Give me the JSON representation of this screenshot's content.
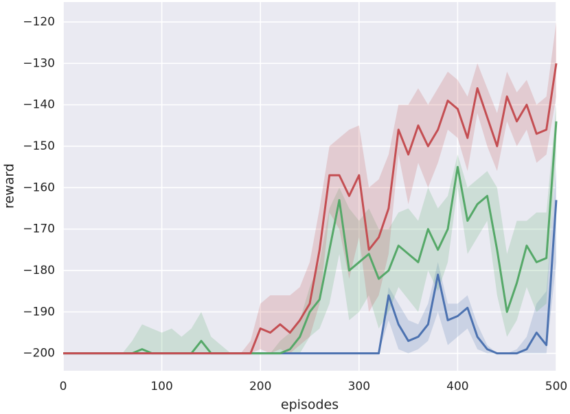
{
  "chart_data": {
    "type": "line",
    "xlabel": "episodes",
    "ylabel": "reward",
    "x": [
      0,
      10,
      20,
      30,
      40,
      50,
      60,
      70,
      80,
      90,
      100,
      110,
      120,
      130,
      140,
      150,
      160,
      170,
      180,
      190,
      200,
      210,
      220,
      230,
      240,
      250,
      260,
      270,
      280,
      290,
      300,
      310,
      320,
      330,
      340,
      350,
      360,
      370,
      380,
      390,
      400,
      410,
      420,
      430,
      440,
      450,
      460,
      470,
      480,
      490,
      500
    ],
    "xlim": [
      0,
      500
    ],
    "xticks": [
      0,
      100,
      200,
      300,
      400,
      500
    ],
    "ylim": [
      -204.2,
      -115.2
    ],
    "yticks": [
      {
        "value": -200,
        "label": "−200"
      },
      {
        "value": -190,
        "label": "−190"
      },
      {
        "value": -180,
        "label": "−180"
      },
      {
        "value": -170,
        "label": "−170"
      },
      {
        "value": -160,
        "label": "−160"
      },
      {
        "value": -150,
        "label": "−150"
      },
      {
        "value": -140,
        "label": "−140"
      },
      {
        "value": -130,
        "label": "−130"
      },
      {
        "value": -120,
        "label": "−120"
      }
    ],
    "grid": true,
    "series": [
      {
        "color": "#4c72b0",
        "values": [
          -200,
          -200,
          -200,
          -200,
          -200,
          -200,
          -200,
          -200,
          -200,
          -200,
          -200,
          -200,
          -200,
          -200,
          -200,
          -200,
          -200,
          -200,
          -200,
          -200,
          -200,
          -200,
          -200,
          -200,
          -200,
          -200,
          -200,
          -200,
          -200,
          -200,
          -200,
          -200,
          -200,
          -186,
          -193,
          -197,
          -196,
          -193,
          -181,
          -192,
          -191,
          -189,
          -196,
          -199,
          -200,
          -200,
          -200,
          -199,
          -195,
          -198,
          -163
        ],
        "upper": [
          -200,
          -200,
          -200,
          -200,
          -200,
          -200,
          -200,
          -200,
          -200,
          -200,
          -200,
          -200,
          -200,
          -200,
          -200,
          -200,
          -200,
          -200,
          -200,
          -200,
          -200,
          -200,
          -200,
          -200,
          -200,
          -200,
          -200,
          -200,
          -200,
          -200,
          -200,
          -200,
          -200,
          -184,
          -188,
          -192,
          -193,
          -188,
          -178,
          -188,
          -188,
          -186,
          -193,
          -198,
          -200,
          -200,
          -199,
          -196,
          -188,
          -185,
          -155
        ],
        "lower": [
          -200,
          -200,
          -200,
          -200,
          -200,
          -200,
          -200,
          -200,
          -200,
          -200,
          -200,
          -200,
          -200,
          -200,
          -200,
          -200,
          -200,
          -200,
          -200,
          -200,
          -200,
          -200,
          -200,
          -200,
          -200,
          -200,
          -200,
          -200,
          -200,
          -200,
          -200,
          -200,
          -200,
          -192,
          -199,
          -200,
          -199,
          -197,
          -190,
          -198,
          -196,
          -194,
          -199,
          -200,
          -200,
          -200,
          -200,
          -200,
          -200,
          -200,
          -178
        ]
      },
      {
        "color": "#55a868",
        "values": [
          -200,
          -200,
          -200,
          -200,
          -200,
          -200,
          -200,
          -200,
          -199,
          -200,
          -200,
          -200,
          -200,
          -200,
          -197,
          -200,
          -200,
          -200,
          -200,
          -200,
          -200,
          -200,
          -200,
          -199,
          -196,
          -190,
          -187,
          -175,
          -163,
          -180,
          -178,
          -176,
          -182,
          -180,
          -174,
          -176,
          -178,
          -170,
          -175,
          -170,
          -155,
          -168,
          -164,
          -162,
          -175,
          -190,
          -183,
          -174,
          -178,
          -177,
          -144
        ],
        "upper": [
          -200,
          -200,
          -200,
          -200,
          -200,
          -200,
          -200,
          -197,
          -193,
          -194,
          -195,
          -194,
          -196,
          -194,
          -190,
          -196,
          -198,
          -200,
          -200,
          -200,
          -200,
          -200,
          -197,
          -195,
          -192,
          -184,
          -178,
          -165,
          -160,
          -165,
          -168,
          -165,
          -170,
          -170,
          -166,
          -165,
          -168,
          -160,
          -165,
          -162,
          -152,
          -160,
          -158,
          -156,
          -160,
          -176,
          -168,
          -168,
          -166,
          -166,
          -140
        ],
        "lower": [
          -200,
          -200,
          -200,
          -200,
          -200,
          -200,
          -200,
          -200,
          -200,
          -200,
          -200,
          -200,
          -200,
          -200,
          -200,
          -200,
          -200,
          -200,
          -200,
          -200,
          -200,
          -200,
          -200,
          -200,
          -200,
          -196,
          -194,
          -188,
          -176,
          -192,
          -190,
          -186,
          -194,
          -190,
          -184,
          -187,
          -190,
          -180,
          -185,
          -178,
          -160,
          -176,
          -172,
          -168,
          -186,
          -196,
          -192,
          -184,
          -190,
          -188,
          -152
        ]
      },
      {
        "color": "#c44e52",
        "values": [
          -200,
          -200,
          -200,
          -200,
          -200,
          -200,
          -200,
          -200,
          -200,
          -200,
          -200,
          -200,
          -200,
          -200,
          -200,
          -200,
          -200,
          -200,
          -200,
          -200,
          -194,
          -195,
          -193,
          -195,
          -192,
          -188,
          -175,
          -157,
          -157,
          -162,
          -157,
          -175,
          -172,
          -165,
          -146,
          -152,
          -145,
          -150,
          -146,
          -139,
          -141,
          -148,
          -136,
          -143,
          -150,
          -138,
          -144,
          -140,
          -147,
          -146,
          -130
        ],
        "upper": [
          -200,
          -200,
          -200,
          -200,
          -200,
          -200,
          -200,
          -200,
          -200,
          -200,
          -200,
          -200,
          -200,
          -200,
          -200,
          -200,
          -200,
          -200,
          -200,
          -197,
          -188,
          -186,
          -186,
          -186,
          -184,
          -178,
          -165,
          -150,
          -148,
          -146,
          -145,
          -160,
          -158,
          -152,
          -140,
          -140,
          -136,
          -140,
          -136,
          -132,
          -134,
          -138,
          -130,
          -136,
          -142,
          -132,
          -137,
          -134,
          -140,
          -138,
          -120
        ],
        "lower": [
          -200,
          -200,
          -200,
          -200,
          -200,
          -200,
          -200,
          -200,
          -200,
          -200,
          -200,
          -200,
          -200,
          -200,
          -200,
          -200,
          -200,
          -200,
          -200,
          -200,
          -199,
          -200,
          -199,
          -200,
          -198,
          -196,
          -188,
          -166,
          -170,
          -182,
          -172,
          -190,
          -186,
          -176,
          -152,
          -164,
          -154,
          -160,
          -154,
          -146,
          -148,
          -156,
          -142,
          -150,
          -156,
          -144,
          -150,
          -146,
          -154,
          -152,
          -138
        ]
      }
    ]
  }
}
